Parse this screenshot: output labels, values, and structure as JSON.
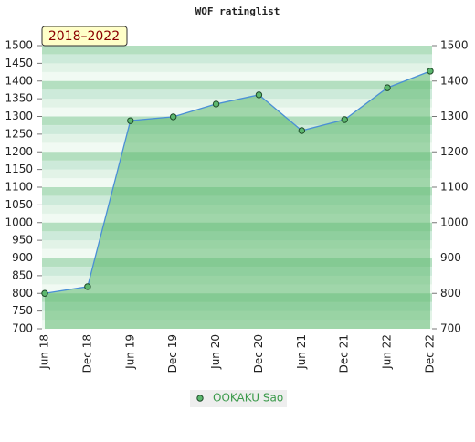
{
  "chart_data": {
    "type": "area",
    "title": "WOF ratinglist",
    "annotation": "2018–2022",
    "categories": [
      "Jun 18",
      "Dec 18",
      "Jun 19",
      "Dec 19",
      "Jun 20",
      "Dec 20",
      "Jun 21",
      "Dec 21",
      "Jun 22",
      "Dec 22"
    ],
    "series": [
      {
        "name": "OOKAKU Sao",
        "color": "#4a8fd6",
        "fill": "#5cb86e",
        "values": [
          800,
          819,
          1288,
          1299,
          1335,
          1361,
          1260,
          1291,
          1381,
          1428
        ]
      }
    ],
    "ylim": [
      700,
      1500
    ],
    "yticks": [
      700,
      750,
      800,
      850,
      900,
      950,
      1000,
      1050,
      1100,
      1150,
      1200,
      1250,
      1300,
      1350,
      1400,
      1450,
      1500
    ],
    "y2lim": [
      700,
      1500
    ],
    "y2ticks": [
      700,
      800,
      900,
      1000,
      1100,
      1200,
      1300,
      1400,
      1500
    ],
    "legend": "bottom"
  }
}
